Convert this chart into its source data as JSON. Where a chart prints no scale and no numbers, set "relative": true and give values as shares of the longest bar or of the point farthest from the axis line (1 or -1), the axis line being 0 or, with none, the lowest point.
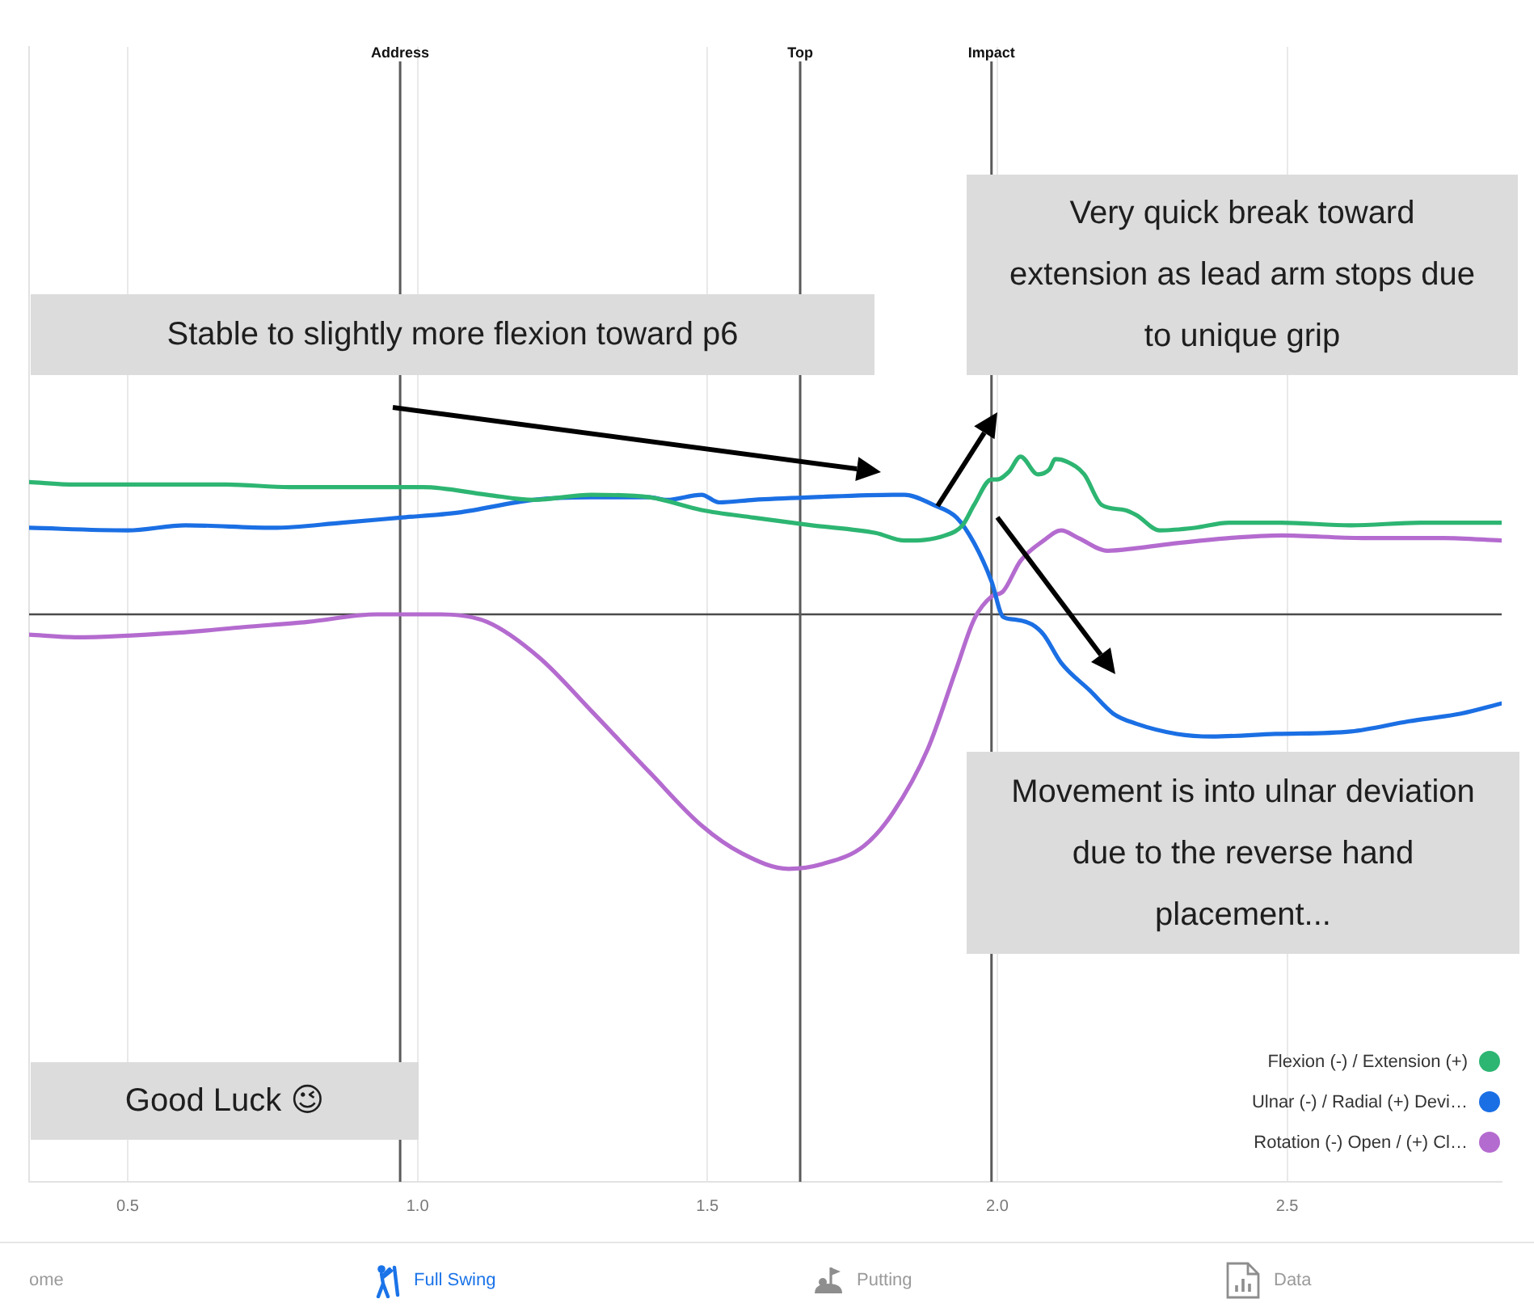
{
  "chart_data": [
    {
      "type": "line",
      "relative": true,
      "xlim": [
        0.33,
        2.87
      ],
      "xticks": [
        0.5,
        {
          "value": 1,
          "label": "1.0"
        },
        1.5,
        {
          "value": 2,
          "label": "2.0"
        },
        2.5
      ],
      "grid": "x",
      "legend": "bottom right",
      "series": [
        {
          "name": "Flexion (-) / Extension (+)",
          "color": "#2db572",
          "x": [
            0.33,
            0.41,
            0.5,
            0.59,
            0.67,
            0.78,
            0.88,
            0.95,
            1.01,
            1.12,
            1.2,
            1.3,
            1.4,
            1.49,
            1.58,
            1.68,
            1.79,
            1.84,
            1.91,
            1.94,
            1.96,
            1.99,
            2,
            2.02,
            2.04,
            2.07,
            2.09,
            2.1,
            2.12,
            2.15,
            2.18,
            2.22,
            2.24,
            2.28,
            2.34,
            2.4,
            2.49,
            2.61,
            2.73,
            2.87
          ],
          "values": [
            0.52,
            0.51,
            0.51,
            0.51,
            0.51,
            0.5,
            0.5,
            0.5,
            0.5,
            0.47,
            0.45,
            0.47,
            0.46,
            0.41,
            0.38,
            0.35,
            0.32,
            0.29,
            0.31,
            0.35,
            0.43,
            0.53,
            0.53,
            0.56,
            0.62,
            0.55,
            0.57,
            0.61,
            0.6,
            0.55,
            0.43,
            0.41,
            0.39,
            0.33,
            0.34,
            0.36,
            0.36,
            0.35,
            0.36,
            0.36
          ]
        },
        {
          "name": "Ulnar (-) / Radial (+) Devi…",
          "color": "#1b6fe4",
          "x": [
            0.33,
            0.5,
            0.6,
            0.75,
            0.87,
            0.97,
            1.07,
            1.2,
            1.3,
            1.4,
            1.43,
            1.49,
            1.52,
            1.58,
            1.68,
            1.82,
            1.84,
            1.89,
            1.93,
            1.96,
            1.99,
            2.01,
            2.03,
            2.06,
            2.08,
            2.11,
            2.16,
            2.2,
            2.24,
            2.31,
            2.37,
            2.48,
            2.61,
            2.71,
            2.8,
            2.87
          ],
          "values": [
            0.34,
            0.33,
            0.35,
            0.34,
            0.36,
            0.38,
            0.4,
            0.45,
            0.46,
            0.46,
            0.45,
            0.47,
            0.44,
            0.45,
            0.46,
            0.47,
            0.47,
            0.43,
            0.38,
            0.28,
            0.13,
            -0.01,
            -0.02,
            -0.04,
            -0.08,
            -0.19,
            -0.3,
            -0.39,
            -0.43,
            -0.47,
            -0.48,
            -0.47,
            -0.46,
            -0.42,
            -0.39,
            -0.35
          ]
        },
        {
          "name": "Rotation (-) Open / (+) Cl…",
          "color": "#b46bcf",
          "x": [
            0.33,
            0.41,
            0.6,
            0.7,
            0.81,
            0.93,
            0.98,
            1.04,
            1.12,
            1.21,
            1.3,
            1.4,
            1.49,
            1.56,
            1.64,
            1.7,
            1.77,
            1.82,
            1.88,
            1.93,
            1.96,
            1.99,
            2.01,
            2.04,
            2.08,
            2.11,
            2.14,
            2.19,
            2.24,
            2.31,
            2.4,
            2.49,
            2.63,
            2.77,
            2.87
          ],
          "values": [
            -0.08,
            -0.09,
            -0.07,
            -0.05,
            -0.03,
            0,
            0,
            0,
            -0.03,
            -0.17,
            -0.38,
            -0.62,
            -0.83,
            -0.94,
            -1,
            -0.98,
            -0.91,
            -0.78,
            -0.53,
            -0.21,
            -0.02,
            0.07,
            0.09,
            0.21,
            0.29,
            0.33,
            0.3,
            0.25,
            0.26,
            0.28,
            0.3,
            0.31,
            0.3,
            0.3,
            0.29
          ]
        }
      ],
      "ref_lines": [
        {
          "axis": "x",
          "value": 0.97,
          "label": "Address"
        },
        {
          "axis": "x",
          "value": 1.66,
          "label": "Top"
        },
        {
          "axis": "x",
          "value": 1.99,
          "label": "Impact"
        }
      ],
      "annotations": [
        "Stable to slightly more flexion toward p6",
        "Very quick break toward extension as lead arm stops due to unique grip",
        "Movement is into ulnar deviation due to the reverse hand placement...",
        "Good Luck 😉"
      ]
    },
    {
      "type": "other",
      "annotations": [
        "ome",
        "Full Swing",
        "Putting",
        "Data"
      ]
    }
  ]
}
